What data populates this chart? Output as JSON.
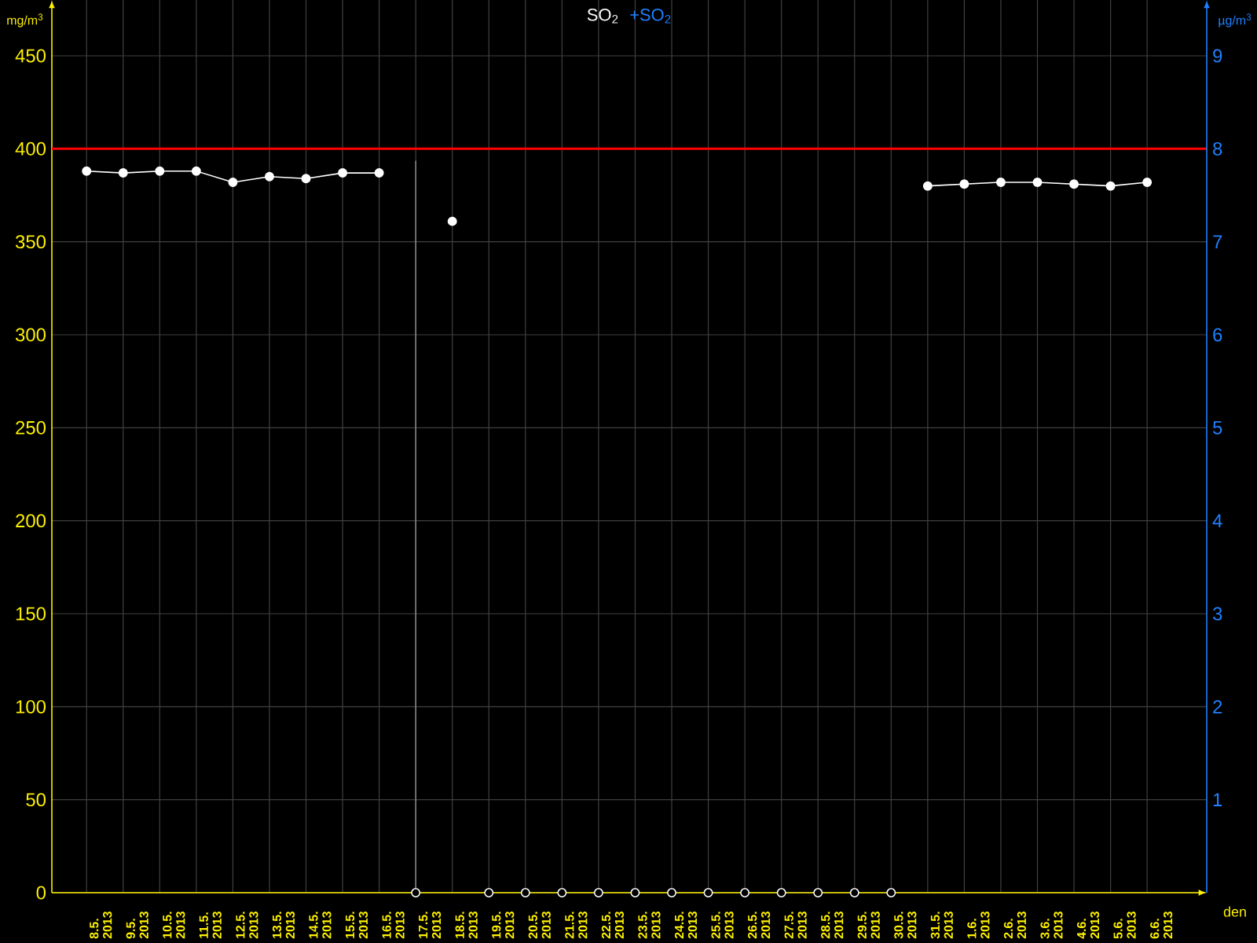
{
  "chart_data": {
    "type": "line",
    "categories": [
      "8.5. 2013",
      "9.5. 2013",
      "10.5. 2013",
      "11.5. 2013",
      "12.5. 2013",
      "13.5. 2013",
      "14.5. 2013",
      "15.5. 2013",
      "16.5. 2013",
      "17.5. 2013",
      "18.5. 2013",
      "19.5. 2013",
      "20.5. 2013",
      "21.5. 2013",
      "22.5. 2013",
      "23.5. 2013",
      "24.5. 2013",
      "25.5. 2013",
      "26.5. 2013",
      "27.5. 2013",
      "28.5. 2013",
      "29.5. 2013",
      "30.5. 2013",
      "31.5. 2013",
      "1.6. 2013",
      "2.6. 2013",
      "3.6. 2013",
      "4.6. 2013",
      "5.6. 2013",
      "6.6. 2013"
    ],
    "series": [
      {
        "name": "SO$_{2}$",
        "color": "#ffffff",
        "marker": "circle",
        "values": [
          388,
          387,
          388,
          388,
          382,
          385,
          384,
          387,
          387,
          null,
          361,
          null,
          null,
          null,
          null,
          null,
          null,
          null,
          null,
          null,
          null,
          null,
          null,
          380,
          381,
          382,
          382,
          381,
          380,
          382
        ]
      },
      {
        "type": "scatter",
        "color": "#ffffff",
        "marker": "circle",
        "values": [
          null,
          null,
          null,
          null,
          null,
          null,
          null,
          null,
          null,
          0,
          null,
          0,
          0,
          0,
          0,
          0,
          0,
          0,
          0,
          0,
          0,
          0,
          0,
          null,
          null,
          null,
          null,
          null,
          null,
          null
        ]
      },
      {
        "name": "+SO$_{2}$",
        "color": "#2080ff",
        "axis": "y2",
        "values": [
          null,
          null,
          null,
          null,
          null,
          null,
          null,
          null,
          null,
          null,
          null,
          null,
          null,
          null,
          null,
          null,
          null,
          null,
          null,
          null,
          null,
          null,
          null,
          null,
          null,
          null,
          null,
          null,
          null,
          null
        ]
      }
    ],
    "xlabel": "den",
    "ylabel": "mg/m$^{3}$",
    "y2label": "µg/m$^{3}$",
    "ylim": [
      0,
      480
    ],
    "yticks": [
      0,
      50,
      100,
      150,
      200,
      250,
      300,
      350,
      400,
      450
    ],
    "y2lim": [
      0,
      9.6
    ],
    "y2ticks": [
      1,
      2,
      3,
      4,
      5,
      6,
      7,
      8,
      9
    ],
    "ref_lines": [
      {
        "axis": "y",
        "value": 400,
        "color": "#ff0000"
      },
      {
        "axis": "x",
        "value": "17.5. 2013",
        "color": "#a0a0a0"
      }
    ],
    "grid": true,
    "legend": "top"
  }
}
